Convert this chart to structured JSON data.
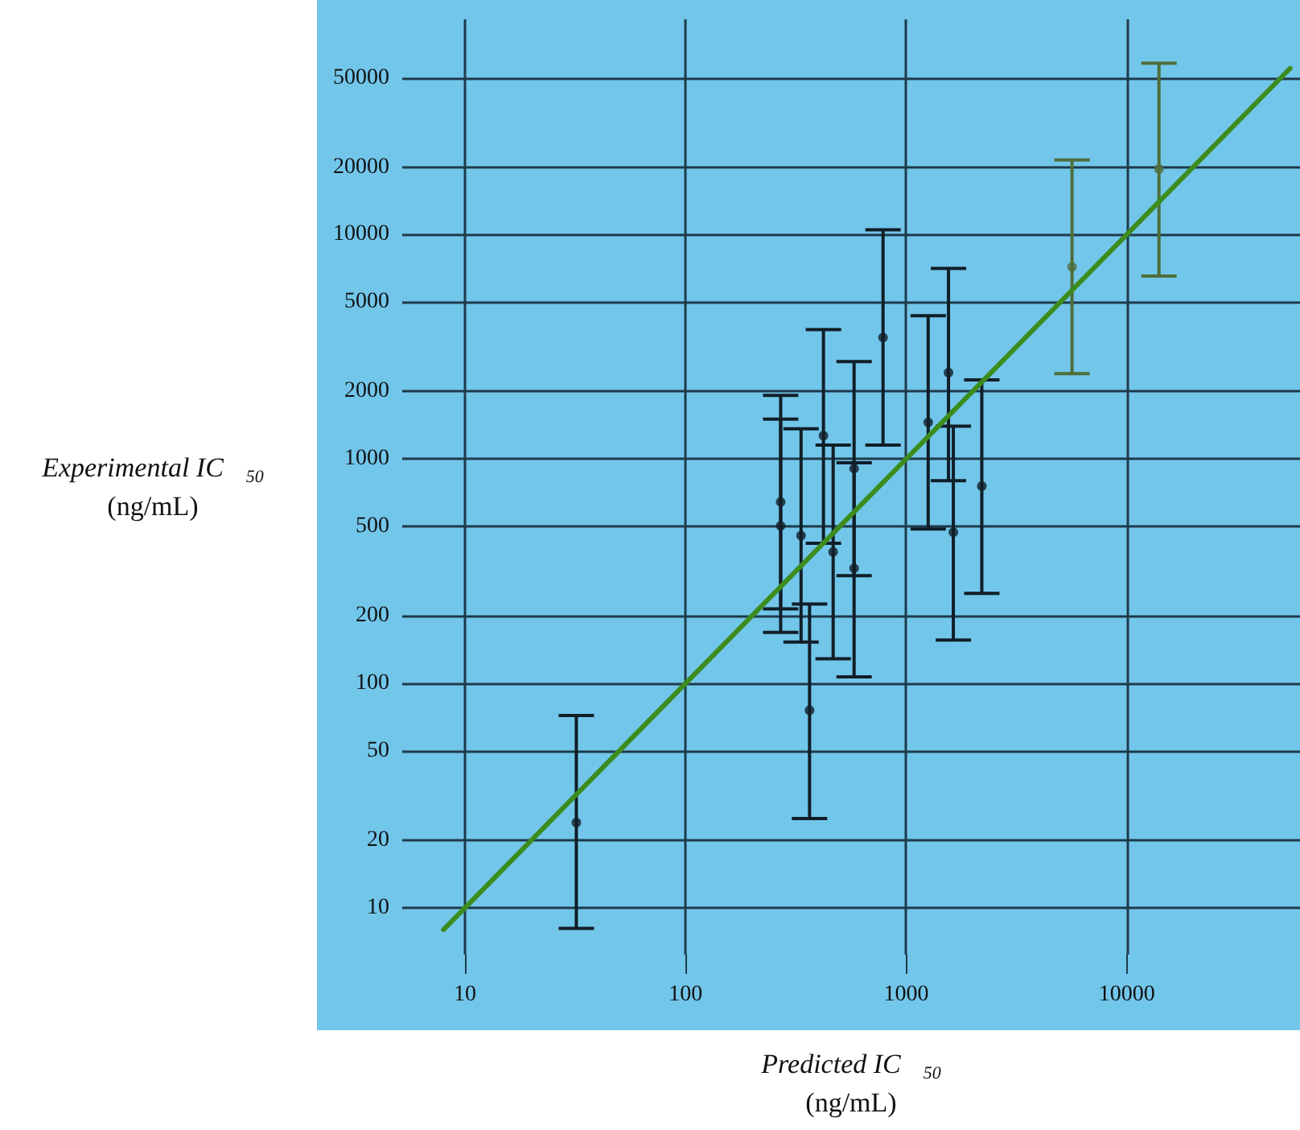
{
  "chart_data": {
    "type": "scatter",
    "xlabel": "Predicted IC$_{50}$\n(ng/mL)",
    "ylabel": "Experimental IC$_{50}$\n(ng/mL)",
    "log": "xy",
    "grid": true,
    "marker": "circle",
    "xlim": [
      5.2,
      61000
    ],
    "ylim": [
      6.2,
      91000
    ],
    "xticks": [
      10,
      100,
      1000,
      10000
    ],
    "yticks": [
      10,
      20,
      50,
      100,
      200,
      500,
      1000,
      2000,
      5000,
      10000,
      20000,
      50000
    ],
    "series": [
      {
        "color": "#111e28",
        "x": [
          32,
          270,
          270,
          334,
          365,
          422,
          467,
          581,
          581,
          786,
          1259,
          1556,
          1637,
          2203
        ],
        "values": [
          24,
          644,
          504,
          456,
          76,
          1272,
          386,
          907,
          326,
          3478,
          1456,
          2427,
          472,
          757
        ],
        "errors": [
          [
            8.1,
            72
          ],
          [
            215,
            1922
          ],
          [
            169,
            1505
          ],
          [
            153,
            1364
          ],
          [
            25,
            226
          ],
          [
            421,
            3773
          ],
          [
            129,
            1153
          ],
          [
            302,
            2720
          ],
          [
            107,
            963
          ],
          [
            1153,
            10500
          ],
          [
            488,
            4350
          ],
          [
            800,
            7070
          ],
          [
            156,
            1402
          ],
          [
            252,
            2253
          ]
        ]
      },
      {
        "color": "#4f6e3a",
        "x": [
          5650,
          14000
        ],
        "values": [
          7180,
          19600
        ],
        "errors": [
          [
            2400,
            21500
          ],
          [
            6540,
            58000
          ]
        ]
      },
      {
        "type": "line",
        "color": "#3c8c1e",
        "x": [
          8,
          55000
        ],
        "values": [
          8,
          55000
        ],
        "marker": "none"
      }
    ]
  }
}
